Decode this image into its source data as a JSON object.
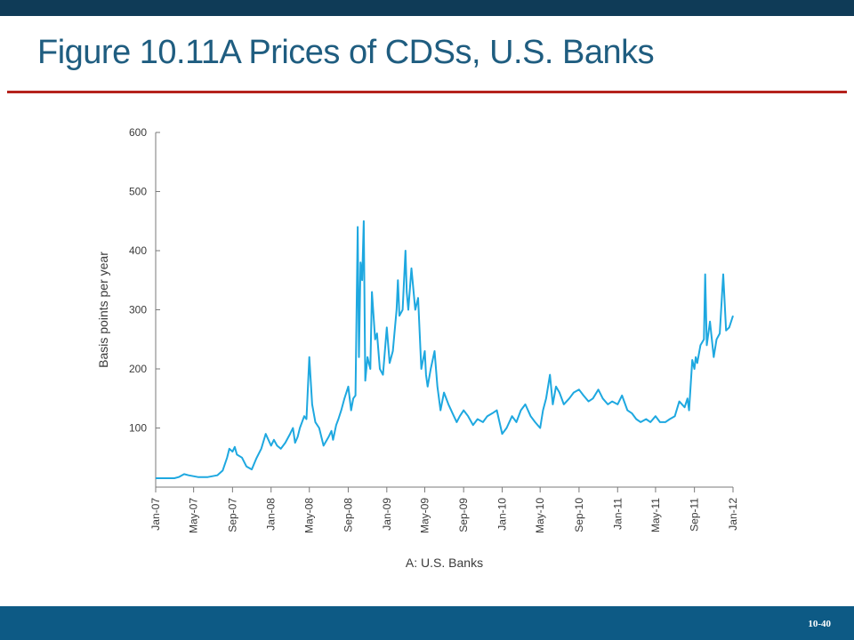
{
  "slide": {
    "title": "Figure 10.11A  Prices of CDSs, U.S. Banks",
    "number": "10-40"
  },
  "colors": {
    "header_bar": "#0f3b57",
    "footer_bar": "#0d5a85",
    "title_text": "#1f5d80",
    "rule": "#b5221d",
    "series": "#1ea8e0"
  },
  "chart_data": {
    "type": "line",
    "title": "",
    "xlabel": "A: U.S. Banks",
    "ylabel": "Basis points per year",
    "ylim": [
      0,
      600
    ],
    "yticks": [
      100,
      200,
      300,
      400,
      500,
      600
    ],
    "xlim": [
      "2007-01",
      "2012-01"
    ],
    "xtick_labels": [
      "Jan-07",
      "May-07",
      "Sep-07",
      "Jan-08",
      "May-08",
      "Sep-08",
      "Jan-09",
      "May-09",
      "Sep-09",
      "Jan-10",
      "May-10",
      "Sep-10",
      "Jan-11",
      "May-11",
      "Sep-11",
      "Jan-12"
    ],
    "grid": false,
    "series": [
      {
        "name": "",
        "x": [
          "2007-01-01",
          "2007-03-01",
          "2007-03-15",
          "2007-04-01",
          "2007-04-15",
          "2007-05-15",
          "2007-06-15",
          "2007-07-15",
          "2007-08-01",
          "2007-08-15",
          "2007-08-22",
          "2007-09-01",
          "2007-09-08",
          "2007-09-15",
          "2007-10-01",
          "2007-10-15",
          "2007-11-01",
          "2007-11-15",
          "2007-12-01",
          "2007-12-15",
          "2008-01-01",
          "2008-01-10",
          "2008-01-20",
          "2008-02-01",
          "2008-02-15",
          "2008-03-01",
          "2008-03-10",
          "2008-03-17",
          "2008-03-25",
          "2008-04-01",
          "2008-04-15",
          "2008-04-22",
          "2008-05-01",
          "2008-05-10",
          "2008-05-20",
          "2008-06-01",
          "2008-06-15",
          "2008-07-01",
          "2008-07-10",
          "2008-07-15",
          "2008-07-25",
          "2008-08-01",
          "2008-08-10",
          "2008-08-20",
          "2008-09-01",
          "2008-09-10",
          "2008-09-17",
          "2008-09-24",
          "2008-10-01",
          "2008-10-05",
          "2008-10-10",
          "2008-10-15",
          "2008-10-20",
          "2008-10-25",
          "2008-11-01",
          "2008-11-05",
          "2008-11-10",
          "2008-11-15",
          "2008-11-25",
          "2008-12-01",
          "2008-12-10",
          "2008-12-20",
          "2009-01-01",
          "2009-01-10",
          "2009-01-20",
          "2009-02-01",
          "2009-02-05",
          "2009-02-10",
          "2009-02-20",
          "2009-03-01",
          "2009-03-05",
          "2009-03-10",
          "2009-03-20",
          "2009-04-01",
          "2009-04-10",
          "2009-04-20",
          "2009-05-01",
          "2009-05-05",
          "2009-05-10",
          "2009-05-20",
          "2009-06-01",
          "2009-06-10",
          "2009-06-20",
          "2009-07-01",
          "2009-07-15",
          "2009-08-01",
          "2009-08-10",
          "2009-08-20",
          "2009-09-01",
          "2009-09-15",
          "2009-10-01",
          "2009-10-15",
          "2009-11-01",
          "2009-11-15",
          "2009-12-01",
          "2009-12-15",
          "2010-01-01",
          "2010-01-15",
          "2010-02-01",
          "2010-02-15",
          "2010-03-01",
          "2010-03-15",
          "2010-04-01",
          "2010-04-15",
          "2010-05-01",
          "2010-05-10",
          "2010-05-20",
          "2010-06-01",
          "2010-06-10",
          "2010-06-20",
          "2010-07-01",
          "2010-07-15",
          "2010-08-01",
          "2010-08-15",
          "2010-09-01",
          "2010-09-15",
          "2010-10-01",
          "2010-10-15",
          "2010-11-01",
          "2010-11-15",
          "2010-12-01",
          "2010-12-15",
          "2011-01-01",
          "2011-01-15",
          "2011-02-01",
          "2011-02-15",
          "2011-03-01",
          "2011-03-15",
          "2011-04-01",
          "2011-04-15",
          "2011-05-01",
          "2011-05-15",
          "2011-06-01",
          "2011-06-15",
          "2011-07-01",
          "2011-07-15",
          "2011-08-01",
          "2011-08-10",
          "2011-08-15",
          "2011-08-25",
          "2011-09-01",
          "2011-09-05",
          "2011-09-10",
          "2011-09-20",
          "2011-10-01",
          "2011-10-05",
          "2011-10-10",
          "2011-10-20",
          "2011-11-01",
          "2011-11-10",
          "2011-11-20",
          "2011-12-01",
          "2011-12-10",
          "2011-12-20",
          "2012-01-01"
        ],
        "y": [
          15,
          15,
          17,
          22,
          20,
          17,
          17,
          20,
          28,
          50,
          65,
          60,
          68,
          55,
          50,
          35,
          30,
          48,
          65,
          90,
          70,
          80,
          70,
          65,
          75,
          90,
          100,
          75,
          85,
          100,
          120,
          115,
          220,
          140,
          110,
          100,
          70,
          85,
          95,
          80,
          105,
          115,
          130,
          150,
          170,
          130,
          150,
          155,
          440,
          220,
          380,
          350,
          450,
          180,
          220,
          210,
          200,
          330,
          250,
          260,
          200,
          190,
          270,
          210,
          230,
          300,
          350,
          290,
          300,
          400,
          330,
          300,
          370,
          300,
          320,
          200,
          230,
          190,
          170,
          200,
          230,
          170,
          130,
          160,
          140,
          120,
          110,
          120,
          130,
          120,
          105,
          115,
          110,
          120,
          125,
          130,
          90,
          100,
          120,
          110,
          130,
          140,
          120,
          110,
          100,
          130,
          150,
          190,
          140,
          170,
          160,
          140,
          150,
          160,
          165,
          155,
          145,
          150,
          165,
          150,
          140,
          145,
          140,
          155,
          130,
          125,
          115,
          110,
          115,
          110,
          120,
          110,
          110,
          115,
          120,
          145,
          135,
          150,
          130,
          215,
          200,
          220,
          210,
          240,
          250,
          360,
          240,
          280,
          220,
          250,
          260,
          360,
          265,
          270,
          290
        ]
      }
    ]
  }
}
